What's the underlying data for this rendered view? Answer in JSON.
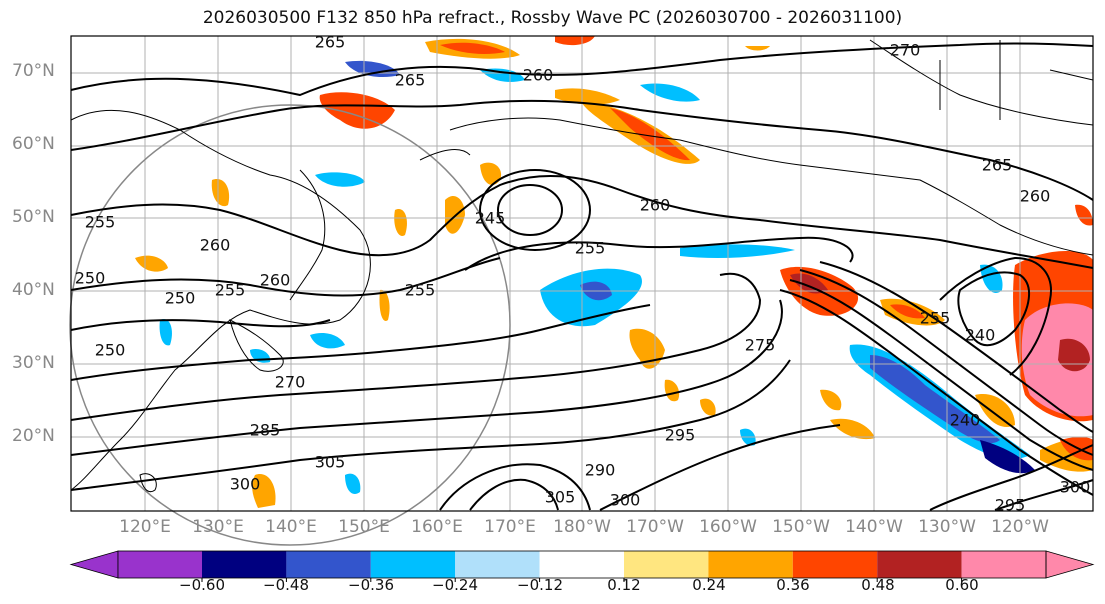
{
  "title": "2026030500 F132 850 hPa refract., Rossby Wave PC (2026030700 - 2026031100)",
  "lat_labels": [
    "70°N",
    "60°N",
    "50°N",
    "40°N",
    "30°N",
    "20°N"
  ],
  "lon_labels": [
    "120°E",
    "130°E",
    "140°E",
    "150°E",
    "160°E",
    "170°E",
    "180°W",
    "170°W",
    "160°W",
    "150°W",
    "140°W",
    "130°W",
    "120°W"
  ],
  "colorbar": {
    "colors": [
      "#9933cc",
      "#000080",
      "#3355cc",
      "#00bfff",
      "#b0e0fa",
      "#ffffff",
      "#ffe680",
      "#ffa500",
      "#ff4500",
      "#b22222",
      "#ff88aa"
    ],
    "labels": [
      "−0.60",
      "−0.48",
      "−0.36",
      "−0.24",
      "−0.12",
      "0.12",
      "0.24",
      "0.36",
      "0.48",
      "0.60"
    ]
  },
  "contour_labels": [
    "265",
    "265",
    "260",
    "270",
    "265",
    "260",
    "250",
    "245",
    "260",
    "255",
    "260",
    "255",
    "250",
    "255",
    "260",
    "250",
    "270",
    "255",
    "275",
    "285",
    "305",
    "300",
    "290",
    "295",
    "300",
    "305",
    "240",
    "255",
    "240",
    "295",
    "300"
  ]
}
